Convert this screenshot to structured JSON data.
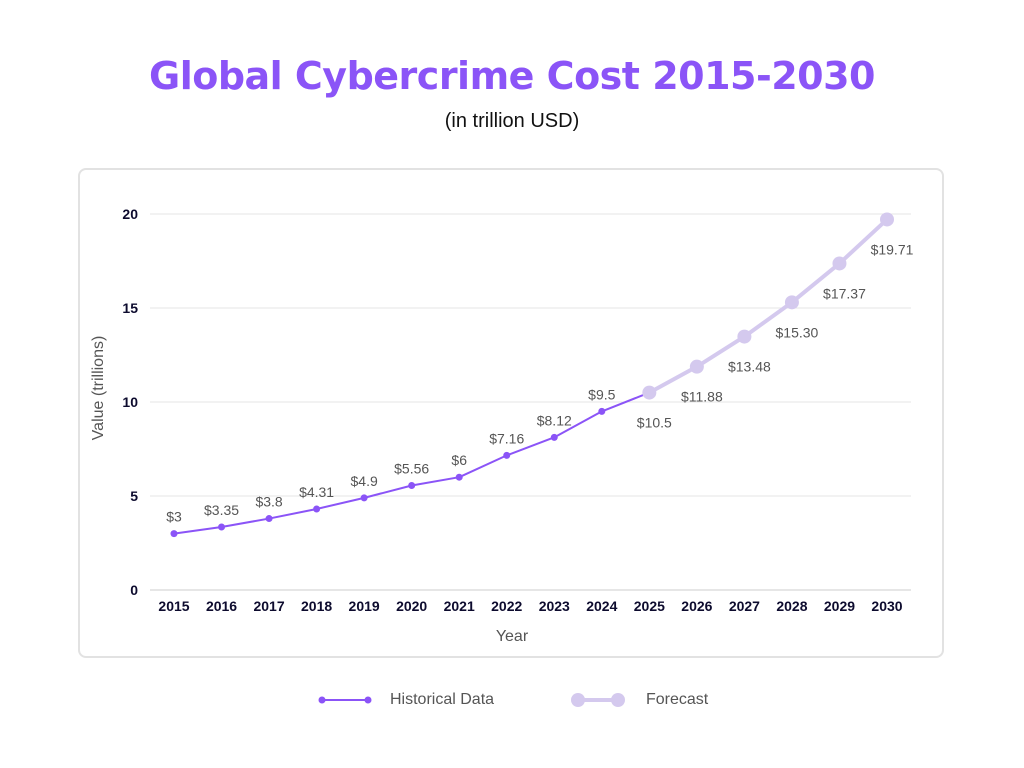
{
  "colors": {
    "title": "#8b54f7",
    "historical": "#8b54f7",
    "forecast": "#d4c9ee",
    "grid": "#e6e6e6",
    "tick_text": "#0d0b2e",
    "label_text": "#555555"
  },
  "chart_data": {
    "type": "line",
    "title": "Global Cybercrime Cost 2015-2030",
    "subtitle": "(in trillion USD)",
    "xlabel": "Year",
    "ylabel": "Value  (trillions)",
    "ylim": [
      0,
      20
    ],
    "yticks": [
      "0",
      "5",
      "10",
      "15",
      "20"
    ],
    "grid": true,
    "legend_position": "bottom",
    "x": [
      "2015",
      "2016",
      "2017",
      "2018",
      "2019",
      "2020",
      "2021",
      "2022",
      "2023",
      "2024",
      "2025",
      "2026",
      "2027",
      "2028",
      "2029",
      "2030"
    ],
    "series": [
      {
        "name": "Historical Data",
        "x": [
          "2015",
          "2016",
          "2017",
          "2018",
          "2019",
          "2020",
          "2021",
          "2022",
          "2023",
          "2024",
          "2025"
        ],
        "values": [
          3,
          3.35,
          3.8,
          4.31,
          4.9,
          5.56,
          6,
          7.16,
          8.12,
          9.5,
          10.5
        ],
        "labels": [
          "$3",
          "$3.35",
          "$3.8",
          "$4.31",
          "$4.9",
          "$5.56",
          "$6",
          "$7.16",
          "$8.12",
          "$9.5",
          ""
        ]
      },
      {
        "name": "Forecast",
        "x": [
          "2025",
          "2026",
          "2027",
          "2028",
          "2029",
          "2030"
        ],
        "values": [
          10.5,
          11.88,
          13.48,
          15.3,
          17.37,
          19.71
        ],
        "labels": [
          "$10.5",
          "$11.88",
          "$13.48",
          "$15.30",
          "$17.37",
          "$19.71"
        ]
      }
    ]
  }
}
